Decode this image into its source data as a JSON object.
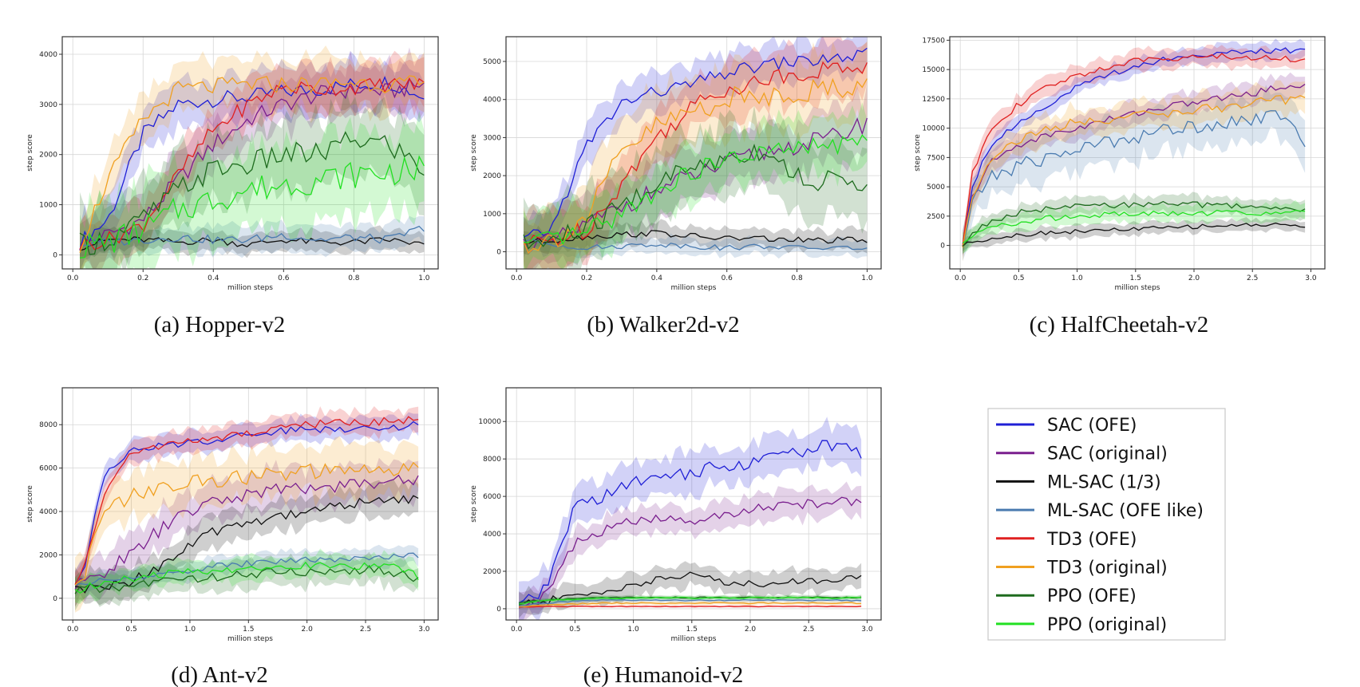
{
  "figure": {
    "legend": [
      {
        "name": "SAC (OFE)",
        "color": "#1f1fd6"
      },
      {
        "name": "SAC (original)",
        "color": "#7a1f8e"
      },
      {
        "name": "ML-SAC (1/3)",
        "color": "#111111"
      },
      {
        "name": "ML-SAC (OFE like)",
        "color": "#4a7bb0"
      },
      {
        "name": "TD3 (OFE)",
        "color": "#e02020"
      },
      {
        "name": "TD3 (original)",
        "color": "#f0a020"
      },
      {
        "name": "PPO (OFE)",
        "color": "#1e6b1e"
      },
      {
        "name": "PPO (original)",
        "color": "#22e022"
      }
    ]
  },
  "chart_data": [
    {
      "type": "line",
      "caption": "(a) Hopper-v2",
      "xlabel": "million steps",
      "ylabel": "step score",
      "xlim": [
        -0.03,
        1.04
      ],
      "ylim": [
        -280,
        4350
      ],
      "xticks": [
        0.0,
        0.2,
        0.4,
        0.6,
        0.8,
        1.0
      ],
      "xtick_labels": [
        "0.0",
        "0.2",
        "0.4",
        "0.6",
        "0.8",
        "1.0"
      ],
      "yticks": [
        0,
        1000,
        2000,
        3000,
        4000
      ],
      "ytick_labels": [
        "0",
        "1000",
        "2000",
        "3000",
        "4000"
      ],
      "x": [
        0.02,
        0.1,
        0.2,
        0.3,
        0.4,
        0.5,
        0.6,
        0.7,
        0.8,
        0.9,
        1.0
      ],
      "series": [
        {
          "name": "SAC (OFE)",
          "values": [
            250,
            700,
            2400,
            3000,
            3100,
            3150,
            3250,
            3300,
            3400,
            3450,
            3150
          ],
          "band": 450
        },
        {
          "name": "SAC (original)",
          "values": [
            200,
            400,
            700,
            1500,
            2200,
            2700,
            3000,
            3200,
            3300,
            3250,
            3400
          ],
          "band": 500
        },
        {
          "name": "ML-SAC (1/3)",
          "values": [
            150,
            300,
            300,
            250,
            300,
            200,
            300,
            250,
            250,
            300,
            200
          ],
          "band": 200
        },
        {
          "name": "ML-SAC (OFE like)",
          "values": [
            200,
            250,
            300,
            350,
            300,
            300,
            400,
            300,
            350,
            300,
            550
          ],
          "band": 250
        },
        {
          "name": "TD3 (OFE)",
          "values": [
            200,
            300,
            600,
            1600,
            2500,
            3000,
            3350,
            3300,
            3350,
            3400,
            3400
          ],
          "band": 450
        },
        {
          "name": "TD3 (original)",
          "values": [
            200,
            1500,
            2700,
            3300,
            3350,
            3400,
            3400,
            3400,
            3450,
            3400,
            3400
          ],
          "band": 500
        },
        {
          "name": "PPO (OFE)",
          "values": [
            200,
            300,
            700,
            1300,
            1700,
            1800,
            2000,
            2000,
            2300,
            2200,
            1700
          ],
          "band": 700
        },
        {
          "name": "PPO (original)",
          "values": [
            150,
            250,
            500,
            900,
            1100,
            1300,
            1400,
            1500,
            1600,
            1650,
            1700
          ],
          "band": 800
        }
      ]
    },
    {
      "type": "line",
      "caption": "(b) Walker2d-v2",
      "xlabel": "million steps",
      "ylabel": "step score",
      "xlim": [
        -0.03,
        1.04
      ],
      "ylim": [
        -450,
        5650
      ],
      "xticks": [
        0.0,
        0.2,
        0.4,
        0.6,
        0.8,
        1.0
      ],
      "xtick_labels": [
        "0.0",
        "0.2",
        "0.4",
        "0.6",
        "0.8",
        "1.0"
      ],
      "yticks": [
        0,
        1000,
        2000,
        3000,
        4000,
        5000
      ],
      "ytick_labels": [
        "0",
        "1000",
        "2000",
        "3000",
        "4000",
        "5000"
      ],
      "x": [
        0.02,
        0.1,
        0.2,
        0.3,
        0.4,
        0.5,
        0.6,
        0.7,
        0.8,
        0.9,
        1.0
      ],
      "series": [
        {
          "name": "SAC (OFE)",
          "values": [
            300,
            600,
            2800,
            3900,
            4200,
            4400,
            4700,
            4900,
            5000,
            5050,
            5200
          ],
          "band": 500
        },
        {
          "name": "SAC (original)",
          "values": [
            200,
            250,
            700,
            1200,
            1600,
            2000,
            2300,
            2600,
            2800,
            3000,
            3400
          ],
          "band": 700
        },
        {
          "name": "ML-SAC (1/3)",
          "values": [
            250,
            300,
            400,
            450,
            500,
            400,
            350,
            350,
            300,
            300,
            300
          ],
          "band": 250
        },
        {
          "name": "ML-SAC (OFE like)",
          "values": [
            300,
            200,
            100,
            150,
            200,
            150,
            100,
            150,
            100,
            100,
            100
          ],
          "band": 200
        },
        {
          "name": "TD3 (OFE)",
          "values": [
            200,
            300,
            600,
            1800,
            3000,
            3800,
            4300,
            4500,
            4700,
            4800,
            4900
          ],
          "band": 700
        },
        {
          "name": "TD3 (original)",
          "values": [
            200,
            300,
            900,
            2600,
            3300,
            3700,
            4000,
            4100,
            4200,
            4300,
            4400
          ],
          "band": 900
        },
        {
          "name": "PPO (OFE)",
          "values": [
            150,
            300,
            600,
            1200,
            1800,
            2200,
            2500,
            2700,
            2000,
            1800,
            1900
          ],
          "band": 900
        },
        {
          "name": "PPO (original)",
          "values": [
            150,
            300,
            500,
            1000,
            1600,
            2100,
            2400,
            2600,
            2700,
            2800,
            2900
          ],
          "band": 700
        }
      ]
    },
    {
      "type": "line",
      "caption": "(c) HalfCheetah-v2",
      "xlabel": "million steps",
      "ylabel": "step score",
      "xlim": [
        -0.09,
        3.12
      ],
      "ylim": [
        -2000,
        17800
      ],
      "xticks": [
        0.0,
        0.5,
        1.0,
        1.5,
        2.0,
        2.5,
        3.0
      ],
      "xtick_labels": [
        "0.0",
        "0.5",
        "1.0",
        "1.5",
        "2.0",
        "2.5",
        "3.0"
      ],
      "yticks": [
        0,
        2500,
        5000,
        7500,
        10000,
        12500,
        15000,
        17500
      ],
      "ytick_labels": [
        "0",
        "2500",
        "5000",
        "7500",
        "10000",
        "12500",
        "15000",
        "17500"
      ],
      "x": [
        0.02,
        0.1,
        0.25,
        0.5,
        0.75,
        1.0,
        1.25,
        1.5,
        1.75,
        2.0,
        2.25,
        2.5,
        2.75,
        2.95
      ],
      "series": [
        {
          "name": "SAC (OFE)",
          "values": [
            0,
            5000,
            8500,
            10500,
            12000,
            13500,
            14500,
            15300,
            15900,
            16200,
            16400,
            16500,
            16600,
            16700
          ],
          "band": 700
        },
        {
          "name": "SAC (original)",
          "values": [
            0,
            4000,
            7000,
            8600,
            9400,
            10000,
            10700,
            11300,
            11800,
            12200,
            12600,
            13000,
            13500,
            13800
          ],
          "band": 900
        },
        {
          "name": "ML-SAC (1/3)",
          "values": [
            0,
            300,
            600,
            900,
            1100,
            1200,
            1300,
            1400,
            1500,
            1600,
            1700,
            1750,
            1800,
            1600
          ],
          "band": 500
        },
        {
          "name": "ML-SAC (OFE like)",
          "values": [
            0,
            3500,
            5800,
            6800,
            7500,
            8200,
            8800,
            9300,
            9800,
            10200,
            10500,
            10800,
            11000,
            9000
          ],
          "band": 1800
        },
        {
          "name": "TD3 (OFE)",
          "values": [
            0,
            6000,
            10000,
            12000,
            13500,
            14500,
            15200,
            15700,
            16000,
            16100,
            16100,
            16000,
            16000,
            15800
          ],
          "band": 800
        },
        {
          "name": "TD3 (original)",
          "values": [
            0,
            4000,
            7500,
            9000,
            9900,
            10500,
            10800,
            11000,
            11300,
            11500,
            11800,
            12100,
            12400,
            12800
          ],
          "band": 1200
        },
        {
          "name": "PPO (OFE)",
          "values": [
            0,
            1000,
            2000,
            2800,
            3100,
            3300,
            3400,
            3500,
            3500,
            3500,
            3400,
            3300,
            3200,
            2900
          ],
          "band": 700
        },
        {
          "name": "PPO (original)",
          "values": [
            0,
            800,
            1500,
            2000,
            2300,
            2500,
            2600,
            2700,
            2700,
            2700,
            2800,
            2800,
            2800,
            2800
          ],
          "band": 700
        }
      ]
    },
    {
      "type": "line",
      "caption": "(d) Ant-v2",
      "xlabel": "million steps",
      "ylabel": "step score",
      "xlim": [
        -0.09,
        3.12
      ],
      "ylim": [
        -1000,
        9700
      ],
      "xticks": [
        0.0,
        0.5,
        1.0,
        1.5,
        2.0,
        2.5,
        3.0
      ],
      "xtick_labels": [
        "0.0",
        "0.5",
        "1.0",
        "1.5",
        "2.0",
        "2.5",
        "3.0"
      ],
      "yticks": [
        0,
        2000,
        4000,
        6000,
        8000
      ],
      "ytick_labels": [
        "0",
        "2000",
        "4000",
        "6000",
        "8000"
      ],
      "x": [
        0.02,
        0.1,
        0.25,
        0.5,
        0.75,
        1.0,
        1.25,
        1.5,
        1.75,
        2.0,
        2.25,
        2.5,
        2.75,
        2.95
      ],
      "series": [
        {
          "name": "SAC (OFE)",
          "values": [
            700,
            1500,
            5500,
            6800,
            7000,
            7200,
            7300,
            7600,
            7700,
            7800,
            7800,
            7900,
            7900,
            8000
          ],
          "band": 500
        },
        {
          "name": "SAC (original)",
          "values": [
            500,
            700,
            1200,
            2000,
            3200,
            4000,
            4500,
            4800,
            5000,
            5100,
            5200,
            5300,
            5400,
            5500
          ],
          "band": 900
        },
        {
          "name": "ML-SAC (1/3)",
          "values": [
            400,
            400,
            500,
            800,
            1500,
            2400,
            3200,
            3500,
            3800,
            4000,
            4300,
            4400,
            4500,
            4600
          ],
          "band": 700
        },
        {
          "name": "ML-SAC (OFE like)",
          "values": [
            600,
            700,
            800,
            900,
            1100,
            1300,
            1500,
            1600,
            1700,
            1800,
            1800,
            1850,
            1900,
            2000
          ],
          "band": 400
        },
        {
          "name": "TD3 (OFE)",
          "values": [
            600,
            1500,
            4500,
            6800,
            7000,
            7200,
            7400,
            7600,
            7800,
            8000,
            8100,
            8100,
            8200,
            8200
          ],
          "band": 500
        },
        {
          "name": "TD3 (original)",
          "values": [
            500,
            1200,
            3800,
            4800,
            5000,
            5300,
            5500,
            5600,
            5700,
            5800,
            5800,
            5900,
            5900,
            5900
          ],
          "band": 1100
        },
        {
          "name": "PPO (OFE)",
          "values": [
            300,
            500,
            400,
            600,
            800,
            900,
            1000,
            1100,
            1200,
            1200,
            1300,
            1300,
            1200,
            800
          ],
          "band": 600
        },
        {
          "name": "PPO (original)",
          "values": [
            300,
            500,
            700,
            900,
            1100,
            1200,
            1300,
            1400,
            1500,
            1500,
            1500,
            1500,
            1400,
            1000
          ],
          "band": 500
        }
      ]
    },
    {
      "type": "line",
      "caption": "(e) Humanoid-v2",
      "xlabel": "million steps",
      "ylabel": "step score",
      "xlim": [
        -0.09,
        3.12
      ],
      "ylim": [
        -600,
        11800
      ],
      "xticks": [
        0.0,
        0.5,
        1.0,
        1.5,
        2.0,
        2.5,
        3.0
      ],
      "xtick_labels": [
        "0.0",
        "0.5",
        "1.0",
        "1.5",
        "2.0",
        "2.5",
        "3.0"
      ],
      "yticks": [
        0,
        2000,
        4000,
        6000,
        8000,
        10000
      ],
      "ytick_labels": [
        "0",
        "2000",
        "4000",
        "6000",
        "8000",
        "10000"
      ],
      "x": [
        0.02,
        0.1,
        0.25,
        0.5,
        0.75,
        1.0,
        1.25,
        1.5,
        1.75,
        2.0,
        2.25,
        2.5,
        2.75,
        2.95
      ],
      "series": [
        {
          "name": "SAC (OFE)",
          "values": [
            200,
            400,
            1000,
            5500,
            6000,
            6800,
            7000,
            7300,
            7600,
            7800,
            8200,
            8500,
            8800,
            8200
          ],
          "band": 1000
        },
        {
          "name": "SAC (original)",
          "values": [
            200,
            300,
            700,
            3500,
            4200,
            4700,
            4800,
            4600,
            5000,
            5300,
            5500,
            5600,
            5700,
            5800
          ],
          "band": 700
        },
        {
          "name": "ML-SAC (1/3)",
          "values": [
            200,
            300,
            400,
            700,
            900,
            1300,
            1600,
            1800,
            1500,
            1300,
            1400,
            1500,
            1600,
            1800
          ],
          "band": 600
        },
        {
          "name": "ML-SAC (OFE like)",
          "values": [
            150,
            200,
            300,
            400,
            450,
            450,
            450,
            450,
            450,
            450,
            450,
            450,
            450,
            450
          ],
          "band": 100
        },
        {
          "name": "TD3 (OFE)",
          "values": [
            100,
            100,
            120,
            120,
            120,
            120,
            120,
            120,
            120,
            120,
            120,
            120,
            120,
            120
          ],
          "band": 50
        },
        {
          "name": "TD3 (original)",
          "values": [
            100,
            150,
            200,
            250,
            300,
            300,
            300,
            300,
            300,
            300,
            300,
            300,
            300,
            300
          ],
          "band": 100
        },
        {
          "name": "PPO (OFE)",
          "values": [
            300,
            400,
            450,
            550,
            580,
            600,
            600,
            600,
            600,
            600,
            600,
            600,
            600,
            600
          ],
          "band": 100
        },
        {
          "name": "PPO (original)",
          "values": [
            250,
            350,
            450,
            500,
            550,
            580,
            580,
            580,
            580,
            580,
            580,
            580,
            580,
            580
          ],
          "band": 100
        }
      ]
    }
  ]
}
